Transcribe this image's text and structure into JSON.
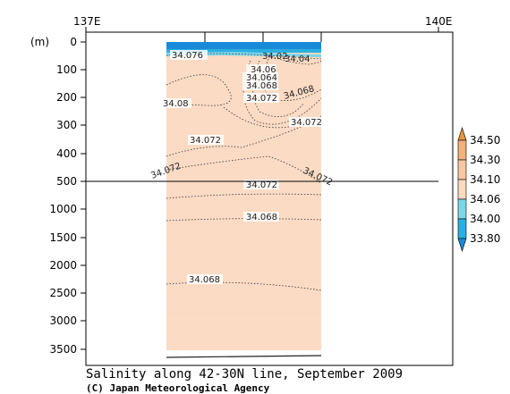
{
  "chart_data": {
    "type": "heatmap",
    "title": "Salinity along 42-30N line, September 2009",
    "credit": "(C) Japan Meteorological Agency",
    "ylabel": "(m)",
    "x_ticks": [
      "137E",
      "140E"
    ],
    "y_ticks_upper": [
      "0",
      "100",
      "200",
      "300",
      "400",
      "500"
    ],
    "y_ticks_lower": [
      "1000",
      "1500",
      "2000",
      "2500",
      "3000",
      "3500"
    ],
    "colorbar": {
      "levels": [
        "34.50",
        "34.30",
        "34.10",
        "34.06",
        "34.00",
        "33.80"
      ],
      "colors": [
        "#e8963a",
        "#f2b07a",
        "#f8c8a4",
        "#fcd9c0",
        "#7fd6e8",
        "#2ab0e0",
        "#1a8ad8"
      ]
    },
    "contours": [
      {
        "value": "34.076",
        "depth_m": 40
      },
      {
        "value": "34.02",
        "depth_m": 40
      },
      {
        "value": "34.04",
        "depth_m": 45
      },
      {
        "value": "34.06",
        "depth_m": 90
      },
      {
        "value": "34.064",
        "depth_m": 120
      },
      {
        "value": "34.068",
        "depth_m": 150
      },
      {
        "value": "34.072",
        "depth_m": 215
      },
      {
        "value": "34.068",
        "depth_m": 185
      },
      {
        "value": "34.08",
        "depth_m": 225
      },
      {
        "value": "34.072",
        "depth_m": 380
      },
      {
        "value": "34.072",
        "depth_m": 455
      },
      {
        "value": "34.072",
        "depth_m": 950
      },
      {
        "value": "34.068",
        "depth_m": 1330
      },
      {
        "value": "34.068",
        "depth_m": 2470
      }
    ],
    "surface_layer": "fresher water (33.80–34.06) in upper ~20 m",
    "interior_value_range": "34.06–34.10"
  }
}
